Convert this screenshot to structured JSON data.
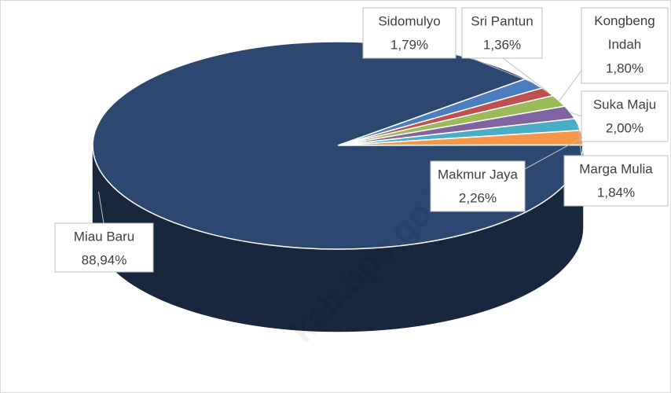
{
  "chart_data": {
    "type": "pie",
    "categories": [
      "Sidomulyo",
      "Sri Pantun",
      "Kongbeng Indah",
      "Suka Maju",
      "Marga Mulia",
      "Makmur Jaya",
      "Miau Baru"
    ],
    "values": [
      1.79,
      1.36,
      1.8,
      2.0,
      1.84,
      2.26,
      88.94
    ],
    "value_labels": [
      "1,79%",
      "1,36%",
      "1,80%",
      "2,00%",
      "1,84%",
      "2,26%",
      "88,94%"
    ],
    "colors": [
      "#4a7ebf",
      "#c0504d",
      "#9bbb59",
      "#8064a2",
      "#4bacc6",
      "#f79646",
      "#2c4770"
    ],
    "watermark": "kab.bps.go.id"
  }
}
